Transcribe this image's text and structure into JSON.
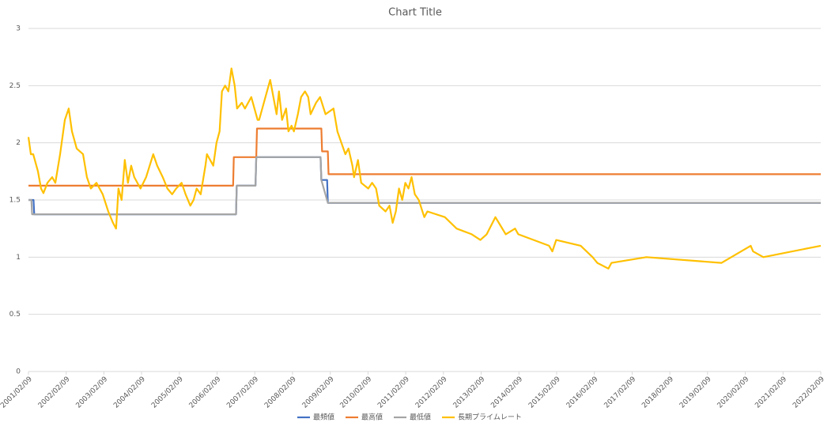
{
  "chart_data": {
    "type": "line",
    "title": "Chart Title",
    "xlim": [
      "2001/02/09",
      "2022/02/09"
    ],
    "xticks": [
      "2001/02/09",
      "2002/02/09",
      "2003/02/09",
      "2004/02/09",
      "2005/02/09",
      "2006/02/09",
      "2007/02/09",
      "2008/02/09",
      "2009/02/09",
      "2010/02/09",
      "2011/02/09",
      "2012/02/09",
      "2013/02/09",
      "2014/02/09",
      "2015/02/09",
      "2016/02/09",
      "2017/02/09",
      "2018/02/09",
      "2019/02/09",
      "2020/02/09",
      "2021/02/09",
      "2022/02/09"
    ],
    "ylim": [
      0,
      3
    ],
    "yticks": [
      0,
      0.5,
      1,
      1.5,
      2,
      2.5,
      3
    ],
    "grid": true,
    "legend": "bottom",
    "series": [
      {
        "name": "最頻値",
        "color": "#4472c4",
        "x": [
          "2001/02/09",
          "2001/03/30",
          "2001/04/06",
          "2006/08/11",
          "2006/08/18",
          "2007/02/16",
          "2007/02/23",
          "2008/11/07",
          "2008/11/14",
          "2009/01/09",
          "2009/01/16",
          "2022/02/09"
        ],
        "values": [
          1.5,
          1.5,
          1.375,
          1.375,
          1.625,
          1.625,
          1.875,
          1.875,
          1.675,
          1.675,
          1.475,
          1.475
        ]
      },
      {
        "name": "最高値",
        "color": "#ed7d31",
        "x": [
          "2001/02/09",
          "2006/07/14",
          "2006/07/21",
          "2007/02/23",
          "2007/03/02",
          "2008/11/14",
          "2008/11/21",
          "2009/01/16",
          "2009/01/23",
          "2022/02/09"
        ],
        "values": [
          1.625,
          1.625,
          1.875,
          1.875,
          2.125,
          2.125,
          1.925,
          1.925,
          1.725,
          1.725
        ]
      },
      {
        "name": "最低値",
        "color": "#a5a5a5",
        "x": [
          "2001/02/09",
          "2001/03/09",
          "2001/03/16",
          "2006/08/11",
          "2006/08/18",
          "2007/02/16",
          "2007/02/23",
          "2008/11/07",
          "2008/11/14",
          "2009/01/16",
          "2022/02/09"
        ],
        "values": [
          1.5,
          1.5,
          1.375,
          1.375,
          1.625,
          1.625,
          1.875,
          1.875,
          1.675,
          1.475,
          1.475
        ]
      },
      {
        "name": "長期プライムレート",
        "color": "#ffc000",
        "x": [
          "2001/02/09",
          "2001/03/04",
          "2001/03/27",
          "2001/05/12",
          "2001/06/11",
          "2001/07/04",
          "2001/08/12",
          "2001/09/27",
          "2001/10/27",
          "2001/12/12",
          "2002/01/27",
          "2002/03/06",
          "2002/04/06",
          "2002/05/22",
          "2002/07/22",
          "2002/08/29",
          "2002/10/06",
          "2002/11/29",
          "2003/01/29",
          "2003/03/23",
          "2003/05/08",
          "2003/06/07",
          "2003/06/30",
          "2003/07/31",
          "2003/08/30",
          "2003/09/30",
          "2003/10/31",
          "2003/11/30",
          "2004/01/30",
          "2004/03/24",
          "2004/06/01",
          "2004/07/09",
          "2004/09/01",
          "2004/10/16",
          "2004/12/01",
          "2005/01/09",
          "2005/03/03",
          "2005/04/10",
          "2005/05/26",
          "2005/06/26",
          "2005/07/26",
          "2005/09/03",
          "2005/10/19",
          "2005/11/03",
          "2005/12/04",
          "2006/01/03",
          "2006/02/03",
          "2006/03/05",
          "2006/03/28",
          "2006/04/28",
          "2006/05/29",
          "2006/06/28",
          "2006/07/29",
          "2006/08/21",
          "2006/10/06",
          "2006/11/06",
          "2007/01/06",
          "2007/02/06",
          "2007/03/08",
          "2007/03/23",
          "2007/05/08",
          "2007/07/08",
          "2007/09/08",
          "2007/10/01",
          "2007/10/31",
          "2007/12/09",
          "2008/01/01",
          "2008/01/31",
          "2008/02/23",
          "2008/04/01",
          "2008/05/02",
          "2008/06/09",
          "2008/07/10",
          "2008/08/02",
          "2008/09/24",
          "2008/11/02",
          "2008/12/25",
          "2009/03/12",
          "2009/04/19",
          "2009/07/05",
          "2009/08/04",
          "2009/09/11",
          "2009/09/27",
          "2009/11/04",
          "2009/12/05",
          "2010/02/11",
          "2010/03/21",
          "2010/04/28",
          "2010/05/29",
          "2010/07/29",
          "2010/09/05",
          "2010/10/06",
          "2010/11/05",
          "2010/12/06",
          "2011/01/06",
          "2011/02/05",
          "2011/03/08",
          "2011/04/07",
          "2011/05/08",
          "2011/06/15",
          "2011/08/08",
          "2011/09/07",
          "2012/02/23",
          "2012/06/16",
          "2012/11/09",
          "2013/02/01",
          "2013/04/03",
          "2013/06/26",
          "2013/10/04",
          "2014/01/03",
          "2014/02/03",
          "2014/11/28",
          "2014/12/29",
          "2015/02/05",
          "2015/09/30",
          "2016/01/23",
          "2016/03/09",
          "2016/06/24",
          "2016/07/24",
          "2017/06/27",
          "2019/06/24",
          "2020/04/02",
          "2020/04/25",
          "2020/08/02",
          "2022/02/09"
        ],
        "values": [
          2.05,
          1.9,
          1.9,
          1.75,
          1.6,
          1.56,
          1.65,
          1.7,
          1.65,
          1.9,
          2.2,
          2.3,
          2.1,
          1.95,
          1.9,
          1.7,
          1.6,
          1.65,
          1.55,
          1.4,
          1.3,
          1.25,
          1.6,
          1.5,
          1.85,
          1.65,
          1.8,
          1.7,
          1.6,
          1.7,
          1.9,
          1.8,
          1.7,
          1.6,
          1.55,
          1.6,
          1.65,
          1.55,
          1.45,
          1.5,
          1.6,
          1.55,
          1.8,
          1.9,
          1.85,
          1.8,
          2.0,
          2.1,
          2.45,
          2.5,
          2.45,
          2.65,
          2.5,
          2.3,
          2.35,
          2.3,
          2.4,
          2.3,
          2.2,
          2.2,
          2.35,
          2.55,
          2.25,
          2.45,
          2.2,
          2.3,
          2.1,
          2.15,
          2.1,
          2.25,
          2.4,
          2.45,
          2.4,
          2.25,
          2.35,
          2.4,
          2.25,
          2.3,
          2.1,
          1.9,
          1.95,
          1.8,
          1.7,
          1.85,
          1.65,
          1.6,
          1.65,
          1.6,
          1.45,
          1.4,
          1.45,
          1.3,
          1.4,
          1.6,
          1.5,
          1.65,
          1.6,
          1.7,
          1.55,
          1.5,
          1.35,
          1.4,
          1.35,
          1.25,
          1.2,
          1.15,
          1.2,
          1.35,
          1.2,
          1.25,
          1.2,
          1.1,
          1.05,
          1.15,
          1.1,
          1.0,
          0.95,
          0.9,
          0.95,
          1.0,
          0.95,
          1.1,
          1.05,
          1.0,
          1.1
        ]
      }
    ]
  }
}
